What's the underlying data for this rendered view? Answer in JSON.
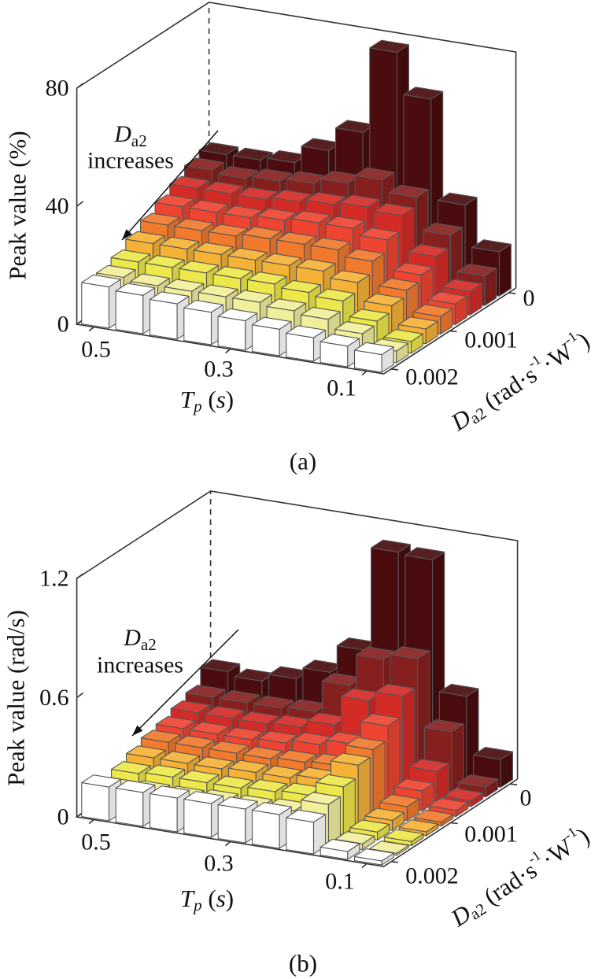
{
  "chart_data": [
    {
      "type": "bar",
      "projection": "3d",
      "caption": "(a)",
      "zlabel": "Peak value (%)",
      "xlabel": {
        "main": "T",
        "sub": "p",
        "unit_open": " (",
        "unit": "s",
        "unit_close": ")"
      },
      "ylabel": {
        "main": "D",
        "sub": "a2",
        "unit": " (rad·s",
        "sup1": "-1",
        "mid": "·W",
        "sup2": "-1",
        "close": ")"
      },
      "annotation": {
        "main": "D",
        "sub": "a2",
        "line2": "increases"
      },
      "x_name": "Tp (s)",
      "x": [
        0.5,
        0.45,
        0.4,
        0.35,
        0.3,
        0.25,
        0.2,
        0.15,
        0.1
      ],
      "x_tick_labels": [
        "0.5",
        "0.3",
        "0.1"
      ],
      "y_name": "Da2 (rad·s-1·W-1)",
      "y": [
        0,
        0.00025,
        0.0005,
        0.00075,
        0.001,
        0.00125,
        0.0015,
        0.00175,
        0.002
      ],
      "y_tick_labels": [
        "0",
        "0.001",
        "0.002"
      ],
      "zlim": [
        0,
        80
      ],
      "z_ticks": [
        "0",
        "40",
        "80"
      ],
      "row_colors": [
        "#4a0c0e",
        "#86201f",
        "#d52b27",
        "#ee4431",
        "#f17a2d",
        "#f5b236",
        "#ece74a",
        "#f2ef9c",
        "#ffffff"
      ],
      "edge_color": "#555555",
      "values": [
        [
          33,
          33,
          34,
          40,
          48,
          77,
          63,
          29,
          15
        ],
        [
          31,
          30,
          31,
          32,
          34,
          37,
          33,
          22,
          10
        ],
        [
          28,
          28,
          28,
          29,
          30,
          31,
          30,
          18,
          8
        ],
        [
          25,
          25,
          25,
          26,
          27,
          27,
          25,
          15,
          7
        ],
        [
          22,
          22,
          22,
          23,
          23,
          23,
          21,
          13,
          6
        ],
        [
          19,
          19,
          19,
          19,
          19,
          19,
          17,
          11,
          5
        ],
        [
          16,
          16,
          16,
          16,
          16,
          15,
          14,
          9,
          4
        ],
        [
          14,
          13,
          13,
          13,
          13,
          12,
          11,
          8,
          4
        ],
        [
          14,
          13,
          12,
          11,
          10,
          9,
          8,
          7,
          6
        ]
      ]
    },
    {
      "type": "bar",
      "projection": "3d",
      "caption": "(b)",
      "zlabel": "Peak value (rad/s)",
      "xlabel": {
        "main": "T",
        "sub": "p",
        "unit_open": " (",
        "unit": "s",
        "unit_close": ")"
      },
      "ylabel": {
        "main": "D",
        "sub": "a2",
        "unit": " (rad·s",
        "sup1": "-1",
        "mid": "·W",
        "sup2": "-1",
        "close": ")"
      },
      "annotation": {
        "main": "D",
        "sub": "a2",
        "line2": "increases"
      },
      "x_name": "Tp (s)",
      "x": [
        0.5,
        0.45,
        0.4,
        0.35,
        0.3,
        0.25,
        0.2,
        0.15,
        0.1
      ],
      "x_tick_labels": [
        "0.5",
        "0.3",
        "0.1"
      ],
      "y_name": "Da2 (rad·s-1·W-1)",
      "y": [
        0,
        0.00025,
        0.0005,
        0.00075,
        0.001,
        0.00125,
        0.0015,
        0.00175,
        0.002
      ],
      "y_tick_labels": [
        "0",
        "0.001",
        "0.002"
      ],
      "zlim": [
        0,
        1.2
      ],
      "z_ticks": [
        "0",
        "0.6",
        "1.2"
      ],
      "row_colors": [
        "#4a0c0e",
        "#86201f",
        "#d52b27",
        "#ee4431",
        "#f17a2d",
        "#f5b236",
        "#ece74a",
        "#f2ef9c",
        "#ffffff"
      ],
      "edge_color": "#555555",
      "values": [
        [
          0.36,
          0.34,
          0.38,
          0.44,
          0.58,
          1.1,
          1.09,
          0.43,
          0.14
        ],
        [
          0.28,
          0.28,
          0.28,
          0.29,
          0.45,
          0.61,
          0.64,
          0.3,
          0.05
        ],
        [
          0.25,
          0.25,
          0.25,
          0.26,
          0.3,
          0.45,
          0.5,
          0.15,
          0.03
        ],
        [
          0.22,
          0.22,
          0.22,
          0.23,
          0.25,
          0.28,
          0.4,
          0.1,
          0.03
        ],
        [
          0.2,
          0.2,
          0.2,
          0.2,
          0.21,
          0.22,
          0.33,
          0.07,
          0.02
        ],
        [
          0.17,
          0.17,
          0.17,
          0.18,
          0.18,
          0.2,
          0.3,
          0.05,
          0.02
        ],
        [
          0.14,
          0.15,
          0.15,
          0.15,
          0.16,
          0.17,
          0.24,
          0.04,
          0.02
        ],
        [
          0.11,
          0.12,
          0.12,
          0.13,
          0.13,
          0.14,
          0.2,
          0.03,
          0.01
        ],
        [
          0.17,
          0.17,
          0.17,
          0.17,
          0.17,
          0.17,
          0.16,
          0.04,
          0.02
        ]
      ]
    }
  ]
}
